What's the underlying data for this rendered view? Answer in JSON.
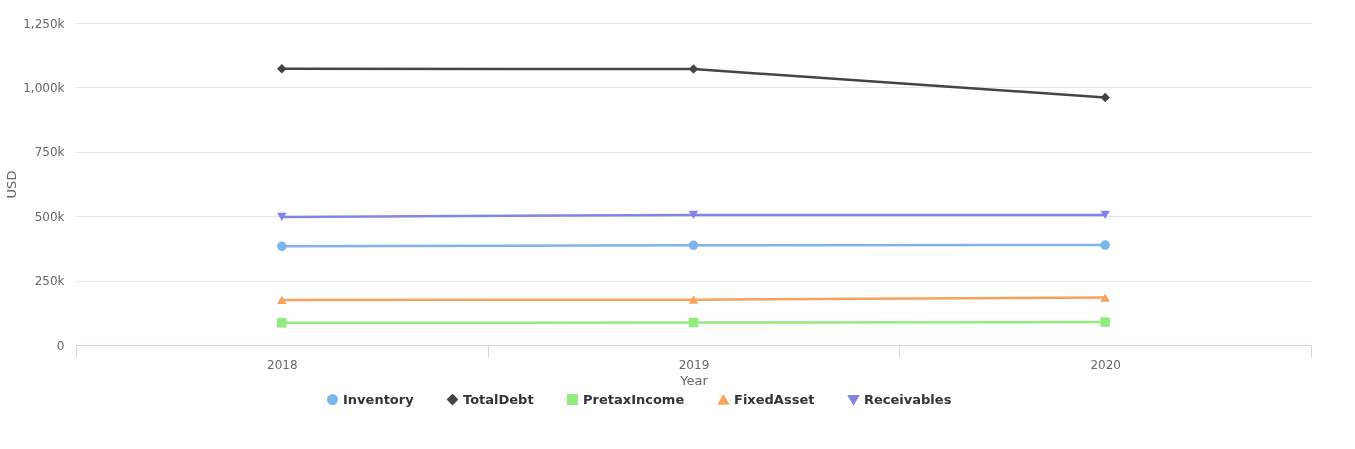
{
  "chart_data": {
    "type": "line",
    "xlabel": "Year",
    "ylabel": "USD",
    "categories": [
      "2018",
      "2019",
      "2020"
    ],
    "series": [
      {
        "name": "Inventory",
        "color": "#7cb5ec",
        "marker": "circle",
        "values": [
          383000,
          387000,
          388000
        ]
      },
      {
        "name": "TotalDebt",
        "color": "#434348",
        "marker": "diamond",
        "values": [
          1072000,
          1071000,
          961000
        ]
      },
      {
        "name": "PretaxIncome",
        "color": "#90ed7d",
        "marker": "square",
        "values": [
          86000,
          87000,
          89000
        ]
      },
      {
        "name": "FixedAsset",
        "color": "#f7a35c",
        "marker": "triangle",
        "values": [
          175000,
          176000,
          184000
        ]
      },
      {
        "name": "Receivables",
        "color": "#8085e9",
        "marker": "triangle-down",
        "values": [
          497000,
          505000,
          505000
        ]
      }
    ],
    "ylim": [
      0,
      1250000
    ],
    "yticks": [
      0,
      {
        "value": 250000,
        "label": "250k"
      },
      {
        "value": 500000,
        "label": "500k"
      },
      {
        "value": 750000,
        "label": "750k"
      },
      {
        "value": 1000000,
        "label": "1,000k"
      },
      {
        "value": 1250000,
        "label": "1,250k"
      }
    ],
    "grid": "y",
    "legend": "bottom",
    "line_style": "solid"
  }
}
